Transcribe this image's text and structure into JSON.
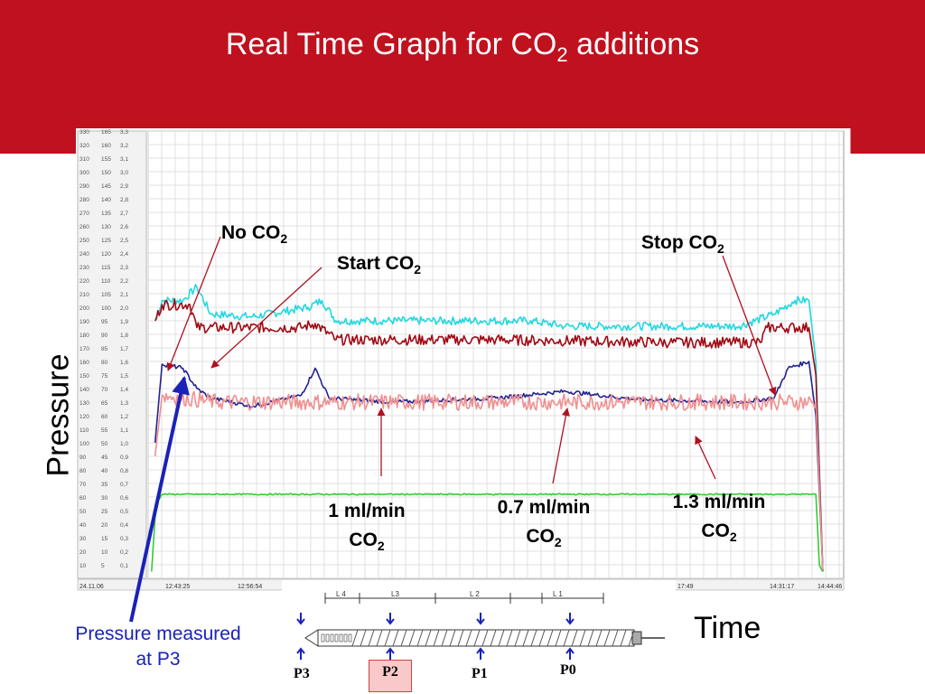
{
  "slide": {
    "title": "Real Time Graph for CO",
    "title_sub": "2",
    "title_end": " additions",
    "colors": {
      "banner": "#c0111f",
      "cyan": "#22d8e0",
      "dark_red": "#a00a14",
      "navy": "#23238f",
      "pink": "#f09090",
      "green": "#33cc33",
      "blue_arrow": "#1a22b8"
    }
  },
  "labels": {
    "no_co2": "No CO",
    "start_co2": "Start CO",
    "stop_co2": "Stop CO",
    "sub2": "2",
    "rate1": "1 ml/min",
    "rate2": "0.7 ml/min",
    "rate3": "1.3 ml/min",
    "co": "CO",
    "pressure": "Pressure",
    "time": "Time",
    "pressure_measured": "Pressure measured",
    "at_p3": "at P3"
  },
  "screw": {
    "zones": [
      "L 4",
      "L3",
      "L 2",
      "L 1"
    ],
    "ports": [
      "P3",
      "P2",
      "P1",
      "P0"
    ]
  },
  "chart_data": {
    "type": "line",
    "time_ticks": [
      "24.11.06",
      "12:43:25",
      "12:56:54",
      "17:49",
      "14:31:17",
      "14:44:46"
    ],
    "scale_rows": [
      [
        "330",
        "165",
        "3,3"
      ],
      [
        "320",
        "160",
        "3,2"
      ],
      [
        "310",
        "155",
        "3,1"
      ],
      [
        "300",
        "150",
        "3,0"
      ],
      [
        "290",
        "145",
        "2,9"
      ],
      [
        "280",
        "140",
        "2,8"
      ],
      [
        "270",
        "135",
        "2,7"
      ],
      [
        "260",
        "130",
        "2,6"
      ],
      [
        "250",
        "125",
        "2,5"
      ],
      [
        "240",
        "120",
        "2,4"
      ],
      [
        "230",
        "115",
        "2,3"
      ],
      [
        "220",
        "110",
        "2,2"
      ],
      [
        "210",
        "105",
        "2,1"
      ],
      [
        "200",
        "100",
        "2,0"
      ],
      [
        "190",
        "95",
        "1,9"
      ],
      [
        "180",
        "90",
        "1,8"
      ],
      [
        "170",
        "85",
        "1,7"
      ],
      [
        "160",
        "80",
        "1,6"
      ],
      [
        "150",
        "75",
        "1,5"
      ],
      [
        "140",
        "70",
        "1,4"
      ],
      [
        "130",
        "65",
        "1,3"
      ],
      [
        "120",
        "60",
        "1,2"
      ],
      [
        "110",
        "55",
        "1,1"
      ],
      [
        "100",
        "50",
        "1,0"
      ],
      [
        "90",
        "45",
        "0,9"
      ],
      [
        "80",
        "40",
        "0,8"
      ],
      [
        "70",
        "35",
        "0,7"
      ],
      [
        "60",
        "30",
        "0,6"
      ],
      [
        "50",
        "25",
        "0,5"
      ],
      [
        "40",
        "20",
        "0,4"
      ],
      [
        "30",
        "15",
        "0,3"
      ],
      [
        "20",
        "10",
        "0,2"
      ],
      [
        "10",
        "5",
        "0,1"
      ]
    ],
    "y_range": [
      0,
      330
    ],
    "x_range": [
      0,
      100
    ],
    "series": [
      {
        "color": "#22d8e0",
        "points": [
          [
            1,
            190
          ],
          [
            2,
            205
          ],
          [
            5,
            205
          ],
          [
            7,
            215
          ],
          [
            9,
            195
          ],
          [
            15,
            193
          ],
          [
            23,
            200
          ],
          [
            25,
            205
          ],
          [
            27,
            190
          ],
          [
            40,
            190
          ],
          [
            55,
            190
          ],
          [
            60,
            186
          ],
          [
            70,
            186
          ],
          [
            75,
            186
          ],
          [
            85,
            186
          ],
          [
            90,
            195
          ],
          [
            93,
            205
          ],
          [
            95,
            205
          ],
          [
            96,
            160
          ],
          [
            97,
            5
          ]
        ],
        "noise": 3
      },
      {
        "color": "#a00a14",
        "points": [
          [
            1,
            190
          ],
          [
            2,
            202
          ],
          [
            6,
            202
          ],
          [
            7,
            185
          ],
          [
            22,
            185
          ],
          [
            24,
            188
          ],
          [
            27,
            176
          ],
          [
            50,
            176
          ],
          [
            75,
            174
          ],
          [
            88,
            174
          ],
          [
            89,
            185
          ],
          [
            95,
            185
          ],
          [
            96,
            150
          ],
          [
            97,
            5
          ]
        ],
        "noise": 4
      },
      {
        "color": "#23238f",
        "points": [
          [
            1,
            100
          ],
          [
            2,
            158
          ],
          [
            5,
            155
          ],
          [
            7,
            140
          ],
          [
            9,
            133
          ],
          [
            15,
            127
          ],
          [
            22,
            135
          ],
          [
            24,
            155
          ],
          [
            26,
            133
          ],
          [
            35,
            130
          ],
          [
            50,
            133
          ],
          [
            60,
            138
          ],
          [
            70,
            132
          ],
          [
            85,
            130
          ],
          [
            90,
            133
          ],
          [
            92,
            155
          ],
          [
            95,
            160
          ],
          [
            96,
            120
          ],
          [
            97,
            5
          ]
        ],
        "noise": 1.5
      },
      {
        "color": "#f09090",
        "points": [
          [
            1,
            90
          ],
          [
            2,
            135
          ],
          [
            10,
            130
          ],
          [
            30,
            130
          ],
          [
            50,
            130
          ],
          [
            70,
            130
          ],
          [
            90,
            130
          ],
          [
            96,
            130
          ],
          [
            97,
            5
          ]
        ],
        "noise": 6
      },
      {
        "color": "#33cc33",
        "points": [
          [
            0.5,
            5
          ],
          [
            1,
            45
          ],
          [
            1.5,
            58
          ],
          [
            2,
            62
          ],
          [
            96,
            62
          ],
          [
            96.5,
            10
          ],
          [
            97,
            5
          ]
        ],
        "noise": 0.5
      }
    ]
  }
}
